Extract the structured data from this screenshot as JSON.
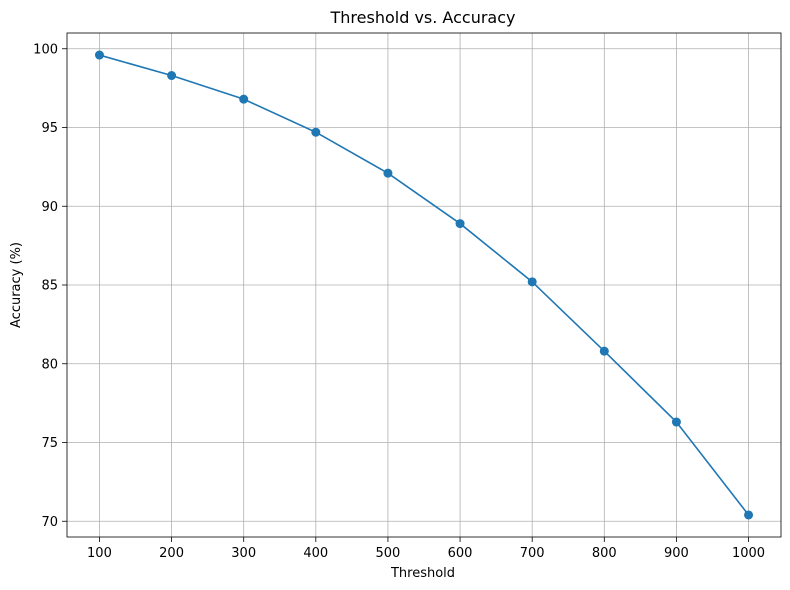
{
  "chart_data": {
    "type": "line",
    "title": "Threshold vs. Accuracy",
    "xlabel": "Threshold",
    "ylabel": "Accuracy (%)",
    "x": [
      100,
      200,
      300,
      400,
      500,
      600,
      700,
      800,
      900,
      1000
    ],
    "series": [
      {
        "values": [
          99.6,
          98.3,
          96.8,
          94.7,
          92.1,
          88.9,
          85.2,
          80.8,
          76.3,
          70.4
        ],
        "color": "#1f77b4",
        "marker": "circle"
      }
    ],
    "xlim": [
      55,
      1045
    ],
    "ylim": [
      69.0,
      101.0
    ],
    "xticks": [
      "100",
      "200",
      "300",
      "400",
      "500",
      "600",
      "700",
      "800",
      "900",
      "1000"
    ],
    "yticks": [
      "70",
      "75",
      "80",
      "85",
      "90",
      "95",
      "100"
    ],
    "grid": true
  }
}
